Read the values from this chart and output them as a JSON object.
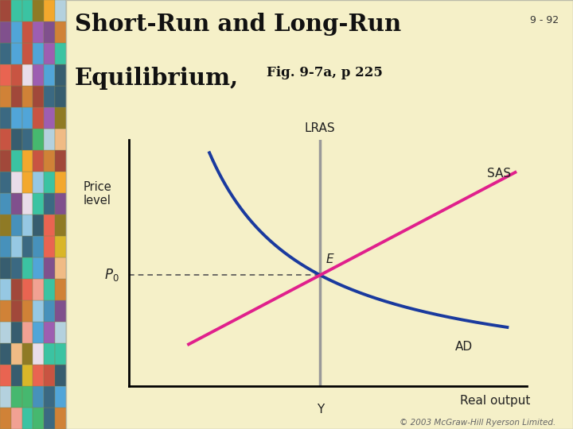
{
  "bg_color": "#f5f0c8",
  "slide_number": "9 - 92",
  "title_line1": "Short-Run and Long-Run",
  "title_line2": "Equilibrium,",
  "title_sub": "Fig. 9-7a, p 225",
  "price_label": "Price\nlevel",
  "xaxis_label": "Real output",
  "lras_label": "LRAS",
  "sas_label": "SAS",
  "ad_label": "AD",
  "e_label": "E",
  "p0_label": "$P_0$",
  "y_label": "Y",
  "ad_color": "#1a3a9e",
  "sas_color": "#e0208c",
  "lras_color": "#999999",
  "axis_color": "#000000",
  "dashed_color": "#555555",
  "copyright": "© 2003 McGraw-Hill Ryerson Limited.",
  "mosaic_colors": [
    "#c0392b",
    "#e74c3c",
    "#3498db",
    "#2980b9",
    "#8e44ad",
    "#d4ac0d",
    "#ca6f1e",
    "#1a5276",
    "#922b21",
    "#7d6608",
    "#27ae60",
    "#154360",
    "#f39c12",
    "#6c3483",
    "#1abc9c",
    "#e8daef",
    "#f0b27a",
    "#85c1e9",
    "#a9cce3",
    "#f1948a"
  ]
}
